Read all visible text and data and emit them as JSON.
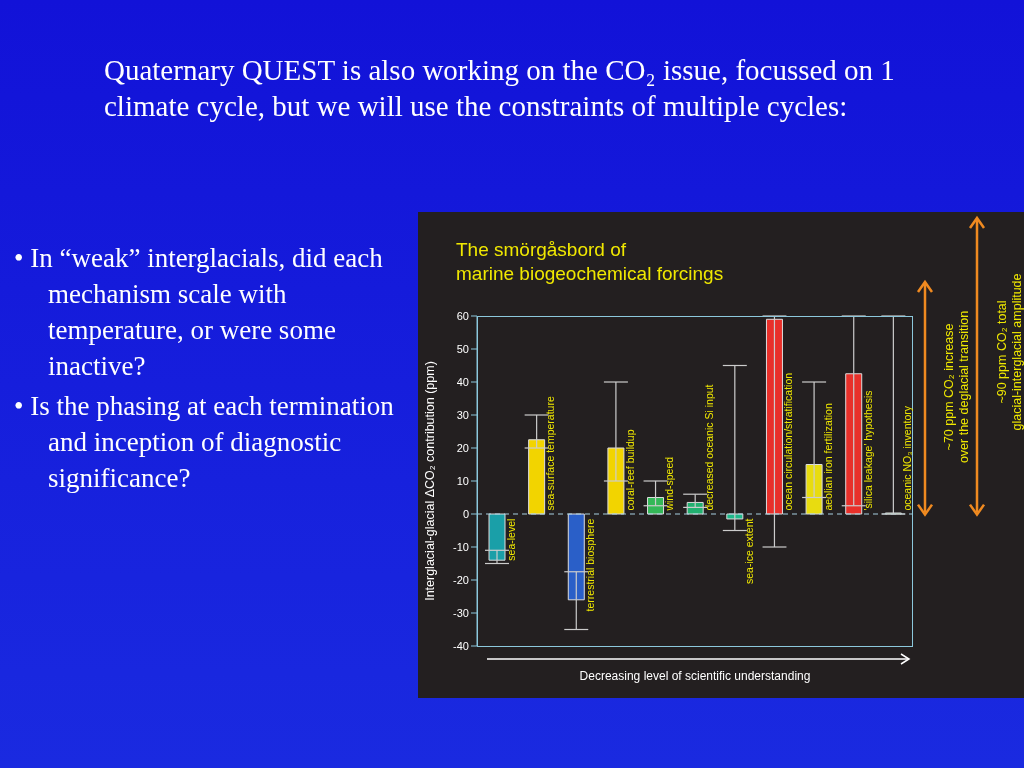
{
  "chart_data": {
    "type": "bar",
    "title": "The smörgåsbord of\nmarine biogeochemical forcings",
    "xlabel": "Decreasing level of scientific understanding",
    "ylabel": "Interglacial-glacial ΔCO₂ contribution (ppm)",
    "categories": [
      "sea-level",
      "sea-surface temperature",
      "terrestrial biosphere",
      "coral-reef buildup",
      "wind-speed",
      "decreased oceanic Si input",
      "sea-ice extent",
      "ocean circulation/stratification",
      "aeolian iron fertilization",
      "'silica leakage' hypothesis",
      "oceanic NO₃ inventory"
    ],
    "values": [
      -14,
      22.5,
      -26,
      20,
      5,
      3.5,
      -1.5,
      59,
      15,
      42.5,
      0
    ],
    "errors": [
      [
        -15,
        -11
      ],
      [
        20,
        30
      ],
      [
        -35,
        -17.5
      ],
      [
        10,
        40
      ],
      [
        2.5,
        10
      ],
      [
        2,
        6
      ],
      [
        -5,
        45
      ],
      [
        -10,
        60
      ],
      [
        5,
        40
      ],
      [
        2.5,
        60
      ],
      [
        0,
        60
      ]
    ],
    "colors": [
      "#1a9fa8",
      "#f2d400",
      "#2a5fc8",
      "#f2d400",
      "#34b858",
      "#22b070",
      "#1fb88a",
      "#e8302a",
      "#e8dc10",
      "#e8302a",
      "#34b858"
    ],
    "ylim": [
      -40,
      60
    ],
    "yticks": [
      -40,
      -30,
      -20,
      -10,
      0,
      10,
      20,
      30,
      40,
      50,
      60
    ],
    "ref_lines": [
      {
        "axis": "y",
        "value": 0,
        "color": "#a8d0e0",
        "line_style": "dashed"
      }
    ],
    "annotations": [
      "Quaternary QUEST is also working on the CO₂ issue, focussed on 1 climate cycle, but we will use the constraints of multiple cycles:",
      "• In “weak” interglacials, did each mechanism scale with temperature, or were some inactive?",
      "• Is the phasing at each termination and inception of diagnostic significance?",
      "~70 ppm CO₂ increase\nover the deglacial transition",
      "~90 ppm CO₂ total\nglacial-interglacial amplitude"
    ],
    "grid": false,
    "legend": false
  }
}
